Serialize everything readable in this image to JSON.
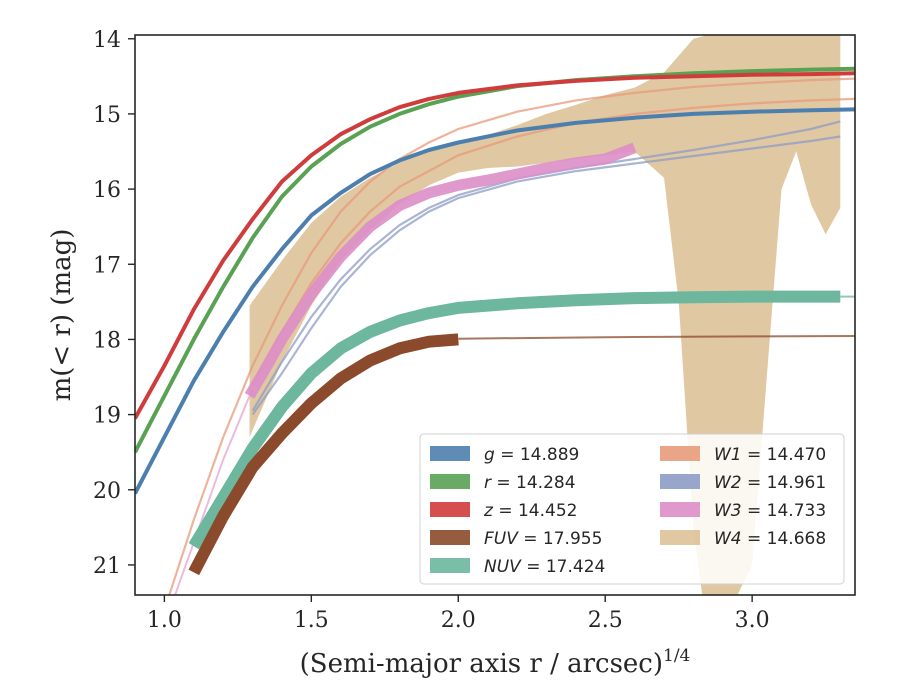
{
  "chart_data": {
    "type": "line",
    "xlabel": "(Semi-major axis r / arcsec)",
    "xlabel_exponent": "1/4",
    "ylabel": "m(< r) (mag)",
    "xlim": [
      0.9,
      3.35
    ],
    "ylim": [
      21.4,
      13.95
    ],
    "y_inverted": true,
    "x_ticks": [
      "1.0",
      "1.5",
      "2.0",
      "2.5",
      "3.0"
    ],
    "y_ticks": [
      "14",
      "15",
      "16",
      "17",
      "18",
      "19",
      "20",
      "21"
    ],
    "legend_position": "lower-right",
    "series": [
      {
        "name": "g = 14.889",
        "color": "#4c7fae",
        "style": "band",
        "x": [
          0.9,
          1.0,
          1.1,
          1.2,
          1.3,
          1.4,
          1.5,
          1.6,
          1.7,
          1.8,
          1.9,
          2.0,
          2.2,
          2.4,
          2.6,
          2.8,
          3.0,
          3.2,
          3.35
        ],
        "y": [
          20.05,
          19.3,
          18.55,
          17.9,
          17.3,
          16.8,
          16.35,
          16.05,
          15.8,
          15.62,
          15.48,
          15.38,
          15.22,
          15.12,
          15.05,
          15.0,
          14.97,
          14.95,
          14.94
        ]
      },
      {
        "name": "r = 14.284",
        "color": "#59a153",
        "style": "band",
        "x": [
          0.9,
          1.0,
          1.1,
          1.2,
          1.3,
          1.4,
          1.5,
          1.6,
          1.7,
          1.8,
          1.9,
          2.0,
          2.2,
          2.4,
          2.6,
          2.8,
          3.0,
          3.2,
          3.35
        ],
        "y": [
          19.5,
          18.75,
          18.0,
          17.3,
          16.65,
          16.1,
          15.7,
          15.4,
          15.17,
          15.0,
          14.87,
          14.77,
          14.63,
          14.55,
          14.5,
          14.46,
          14.43,
          14.41,
          14.4
        ]
      },
      {
        "name": "z = 14.452",
        "color": "#d03c3c",
        "style": "band",
        "x": [
          0.9,
          1.0,
          1.1,
          1.2,
          1.3,
          1.4,
          1.5,
          1.6,
          1.7,
          1.8,
          1.9,
          2.0,
          2.2,
          2.4,
          2.6,
          2.8,
          3.0,
          3.2,
          3.35
        ],
        "y": [
          19.05,
          18.35,
          17.6,
          16.95,
          16.4,
          15.9,
          15.55,
          15.27,
          15.07,
          14.91,
          14.8,
          14.72,
          14.62,
          14.56,
          14.52,
          14.5,
          14.48,
          14.47,
          14.46
        ]
      },
      {
        "name": "FUV = 17.955",
        "color": "#8b4a2b",
        "style": "band",
        "x": [
          1.1,
          1.2,
          1.3,
          1.4,
          1.5,
          1.6,
          1.7,
          1.8,
          1.9,
          2.0
        ],
        "y": [
          21.1,
          20.35,
          19.7,
          19.25,
          18.85,
          18.52,
          18.28,
          18.12,
          18.03,
          18.0
        ],
        "tail_x": [
          2.0,
          2.5,
          3.0,
          3.35
        ],
        "tail_y": [
          17.99,
          17.97,
          17.96,
          17.955
        ]
      },
      {
        "name": "NUV = 17.424",
        "color": "#6cb79d",
        "style": "band",
        "x": [
          1.1,
          1.2,
          1.3,
          1.4,
          1.5,
          1.6,
          1.7,
          1.8,
          1.9,
          2.0,
          2.2,
          2.4,
          2.6,
          2.8,
          3.0,
          3.2,
          3.3
        ],
        "y": [
          20.75,
          20.1,
          19.45,
          18.9,
          18.45,
          18.12,
          17.9,
          17.75,
          17.65,
          17.58,
          17.52,
          17.48,
          17.45,
          17.44,
          17.43,
          17.43,
          17.43
        ],
        "tail_x": [
          3.3,
          3.35
        ],
        "tail_y": [
          17.43,
          17.43
        ]
      },
      {
        "name": "W1 = 14.470",
        "color": "#e89a7a",
        "style": "lines",
        "lines": [
          {
            "x": [
              1.0,
              1.1,
              1.2,
              1.3,
              1.4,
              1.5,
              1.6,
              1.7,
              1.8,
              1.9,
              2.0,
              2.2,
              2.4,
              2.6,
              2.8,
              3.0,
              3.2,
              3.35
            ],
            "y": [
              21.6,
              20.4,
              19.3,
              18.35,
              17.55,
              16.85,
              16.3,
              15.9,
              15.6,
              15.38,
              15.2,
              14.97,
              14.82,
              14.72,
              14.64,
              14.59,
              14.55,
              14.53
            ]
          },
          {
            "x": [
              1.3,
              1.4,
              1.5,
              1.6,
              1.7,
              1.8,
              2.0,
              2.2,
              2.4,
              2.6,
              2.8,
              3.0,
              3.2,
              3.35
            ],
            "y": [
              18.6,
              17.9,
              17.25,
              16.72,
              16.3,
              15.97,
              15.55,
              15.3,
              15.12,
              15.0,
              14.92,
              14.86,
              14.82,
              14.8
            ]
          }
        ]
      },
      {
        "name": "W2 = 14.961",
        "color": "#8e9cc6",
        "style": "lines",
        "lines": [
          {
            "x": [
              1.3,
              1.4,
              1.5,
              1.6,
              1.7,
              1.8,
              1.9,
              2.0,
              2.2,
              2.4,
              2.6,
              2.8,
              3.0,
              3.2,
              3.3
            ],
            "y": [
              18.95,
              18.3,
              17.7,
              17.2,
              16.8,
              16.48,
              16.25,
              16.08,
              15.86,
              15.72,
              15.6,
              15.48,
              15.35,
              15.2,
              15.1
            ]
          },
          {
            "x": [
              1.3,
              1.4,
              1.5,
              1.6,
              1.7,
              1.8,
              1.9,
              2.0,
              2.2,
              2.4,
              2.6,
              2.8,
              3.0,
              3.2,
              3.3
            ],
            "y": [
              19.0,
              18.45,
              17.85,
              17.3,
              16.88,
              16.55,
              16.3,
              16.12,
              15.9,
              15.76,
              15.66,
              15.56,
              15.46,
              15.36,
              15.3
            ]
          }
        ]
      },
      {
        "name": "W3 = 14.733",
        "color": "#dd8ec8",
        "style": "band",
        "x": [
          1.29,
          1.35,
          1.4,
          1.5,
          1.6,
          1.7,
          1.8,
          1.9,
          2.0,
          2.1,
          2.2,
          2.3,
          2.4,
          2.5,
          2.6
        ],
        "y": [
          18.75,
          18.35,
          18.0,
          17.4,
          16.9,
          16.5,
          16.22,
          16.05,
          15.95,
          15.88,
          15.8,
          15.72,
          15.65,
          15.6,
          15.45
        ],
        "thin_x": [
          1.0,
          1.1,
          1.2,
          1.29
        ],
        "thin_y": [
          21.8,
          20.7,
          19.6,
          18.75
        ]
      },
      {
        "name": "W4 = 14.668",
        "color": "#d7b888",
        "style": "area",
        "upper_x": [
          1.29,
          1.4,
          1.5,
          1.6,
          1.7,
          1.8,
          1.9,
          2.0,
          2.1,
          2.2,
          2.3,
          2.4,
          2.5,
          2.6,
          2.7,
          2.8,
          2.9,
          3.0,
          3.1,
          3.2,
          3.3
        ],
        "upper_y": [
          17.55,
          16.95,
          16.45,
          16.1,
          15.85,
          15.65,
          15.5,
          15.38,
          15.28,
          15.15,
          15.0,
          14.88,
          14.75,
          14.65,
          14.45,
          14.0,
          13.9,
          13.9,
          13.9,
          13.9,
          13.9
        ],
        "lower_x": [
          1.29,
          1.4,
          1.5,
          1.6,
          1.7,
          1.8,
          1.9,
          2.0,
          2.1,
          2.2,
          2.3,
          2.4,
          2.5,
          2.6,
          2.7,
          2.75,
          2.8,
          2.83,
          2.88,
          2.95,
          3.0,
          3.05,
          3.1,
          3.15,
          3.2,
          3.25,
          3.3
        ],
        "lower_y": [
          19.3,
          18.3,
          17.55,
          16.95,
          16.55,
          16.2,
          15.95,
          15.78,
          15.72,
          15.7,
          15.65,
          15.6,
          15.55,
          15.5,
          15.85,
          17.5,
          20.5,
          21.4,
          21.4,
          21.4,
          21.0,
          18.5,
          16.0,
          15.5,
          16.2,
          16.6,
          16.25
        ]
      }
    ],
    "colors": {
      "g": "#4c7fae",
      "r": "#59a153",
      "z": "#d03c3c",
      "FUV": "#8b4a2b",
      "NUV": "#6cb79d",
      "W1": "#e89a7a",
      "W2": "#8e9cc6",
      "W3": "#dd8ec8",
      "W4": "#d7b888"
    }
  }
}
